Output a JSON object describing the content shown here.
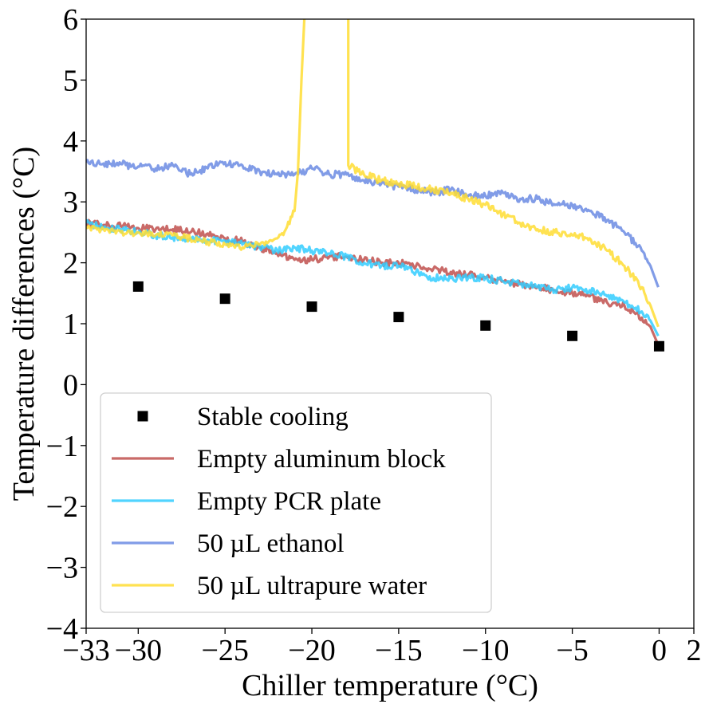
{
  "chart_data": {
    "type": "line",
    "title": "",
    "xlabel": "Chiller temperature (°C)",
    "ylabel": "Temperature differences (°C)",
    "xlim": [
      -33,
      2
    ],
    "ylim": [
      -4,
      6
    ],
    "xticks": [
      -33,
      -30,
      -25,
      -20,
      -15,
      -10,
      -5,
      0,
      2
    ],
    "xtick_labels": [
      "−33",
      "−30",
      "−25",
      "−20",
      "−15",
      "−10",
      "−5",
      "0",
      "2"
    ],
    "yticks": [
      -4,
      -3,
      -2,
      -1,
      0,
      1,
      2,
      3,
      4,
      5,
      6
    ],
    "ytick_labels": [
      "−4",
      "−3",
      "−2",
      "−1",
      "0",
      "1",
      "2",
      "3",
      "4",
      "5",
      "6"
    ],
    "grid": false,
    "legend_position": "lower-left",
    "series": [
      {
        "name": "Stable cooling",
        "kind": "scatter",
        "marker": "square",
        "color": "#000000",
        "x": [
          -30,
          -25,
          -20,
          -15,
          -10,
          -5,
          0
        ],
        "y": [
          1.61,
          1.41,
          1.28,
          1.11,
          0.97,
          0.8,
          0.63
        ]
      },
      {
        "name": "Empty aluminum block",
        "kind": "line",
        "color": "#c0504d",
        "x": [
          -33,
          -32,
          -31,
          -30,
          -29,
          -28,
          -27,
          -26,
          -25,
          -24,
          -23,
          -22,
          -21,
          -20,
          -19,
          -18,
          -17,
          -16,
          -15,
          -14,
          -13,
          -12,
          -11,
          -10,
          -9,
          -8,
          -7,
          -6,
          -5,
          -4,
          -3,
          -2,
          -1,
          -0.5,
          -0.05
        ],
        "y": [
          2.65,
          2.62,
          2.6,
          2.57,
          2.55,
          2.55,
          2.5,
          2.48,
          2.4,
          2.35,
          2.25,
          2.15,
          2.05,
          2.05,
          2.1,
          2.1,
          2.05,
          2.0,
          2.0,
          1.95,
          1.9,
          1.85,
          1.8,
          1.75,
          1.7,
          1.65,
          1.6,
          1.55,
          1.5,
          1.45,
          1.35,
          1.3,
          1.1,
          0.95,
          0.65
        ]
      },
      {
        "name": "Empty PCR plate",
        "kind": "line",
        "color": "#33ccff",
        "x": [
          -33,
          -32,
          -31,
          -30,
          -29,
          -28,
          -27,
          -26,
          -25,
          -24,
          -23,
          -22,
          -21,
          -20,
          -19,
          -18,
          -17,
          -16,
          -15,
          -14,
          -13,
          -12,
          -11,
          -10,
          -9,
          -8,
          -7,
          -6,
          -5,
          -4,
          -3,
          -2,
          -1,
          -0.5,
          -0.05
        ],
        "y": [
          2.65,
          2.58,
          2.55,
          2.5,
          2.45,
          2.42,
          2.4,
          2.38,
          2.35,
          2.3,
          2.25,
          2.2,
          2.25,
          2.2,
          2.15,
          2.1,
          2.0,
          1.95,
          1.95,
          1.85,
          1.75,
          1.75,
          1.75,
          1.75,
          1.7,
          1.65,
          1.6,
          1.55,
          1.6,
          1.55,
          1.45,
          1.35,
          1.2,
          1.05,
          0.8
        ]
      },
      {
        "name": "50 µL ethanol",
        "kind": "line",
        "color": "#6b8be3",
        "x": [
          -33,
          -32,
          -31,
          -30,
          -29,
          -28,
          -27,
          -26,
          -25,
          -24,
          -23,
          -22,
          -21,
          -20,
          -19,
          -18,
          -17,
          -16,
          -15,
          -14,
          -13,
          -12,
          -11,
          -10,
          -9,
          -8,
          -7,
          -6,
          -5,
          -4,
          -3,
          -2,
          -1,
          -0.5,
          -0.05
        ],
        "y": [
          3.65,
          3.63,
          3.62,
          3.58,
          3.55,
          3.6,
          3.45,
          3.55,
          3.65,
          3.6,
          3.5,
          3.45,
          3.45,
          3.55,
          3.45,
          3.45,
          3.35,
          3.3,
          3.25,
          3.2,
          3.15,
          3.2,
          3.1,
          3.1,
          3.15,
          3.05,
          3.05,
          2.95,
          2.95,
          2.85,
          2.7,
          2.5,
          2.2,
          1.95,
          1.6
        ]
      },
      {
        "name": "50 µL ultrapure water",
        "kind": "line",
        "color": "#ffdd33",
        "x": [
          -33,
          -32,
          -31,
          -30,
          -29,
          -28,
          -27,
          -26,
          -25,
          -24,
          -23,
          -22,
          -21.5,
          -21,
          -20.8,
          -20.6,
          -20.4,
          -17.9,
          -17.9,
          -17,
          -16,
          -15,
          -14,
          -13,
          -12,
          -11,
          -10,
          -9,
          -8,
          -7,
          -6,
          -5,
          -4,
          -3,
          -2,
          -1,
          -0.5,
          -0.05
        ],
        "y": [
          2.6,
          2.55,
          2.5,
          2.5,
          2.45,
          2.45,
          2.4,
          2.35,
          2.3,
          2.25,
          2.3,
          2.4,
          2.55,
          2.85,
          3.5,
          5.0,
          6.2,
          6.2,
          3.6,
          3.45,
          3.35,
          3.3,
          3.25,
          3.2,
          3.15,
          3.05,
          2.95,
          2.8,
          2.65,
          2.55,
          2.5,
          2.45,
          2.4,
          2.2,
          1.95,
          1.6,
          1.3,
          0.95
        ]
      }
    ]
  }
}
